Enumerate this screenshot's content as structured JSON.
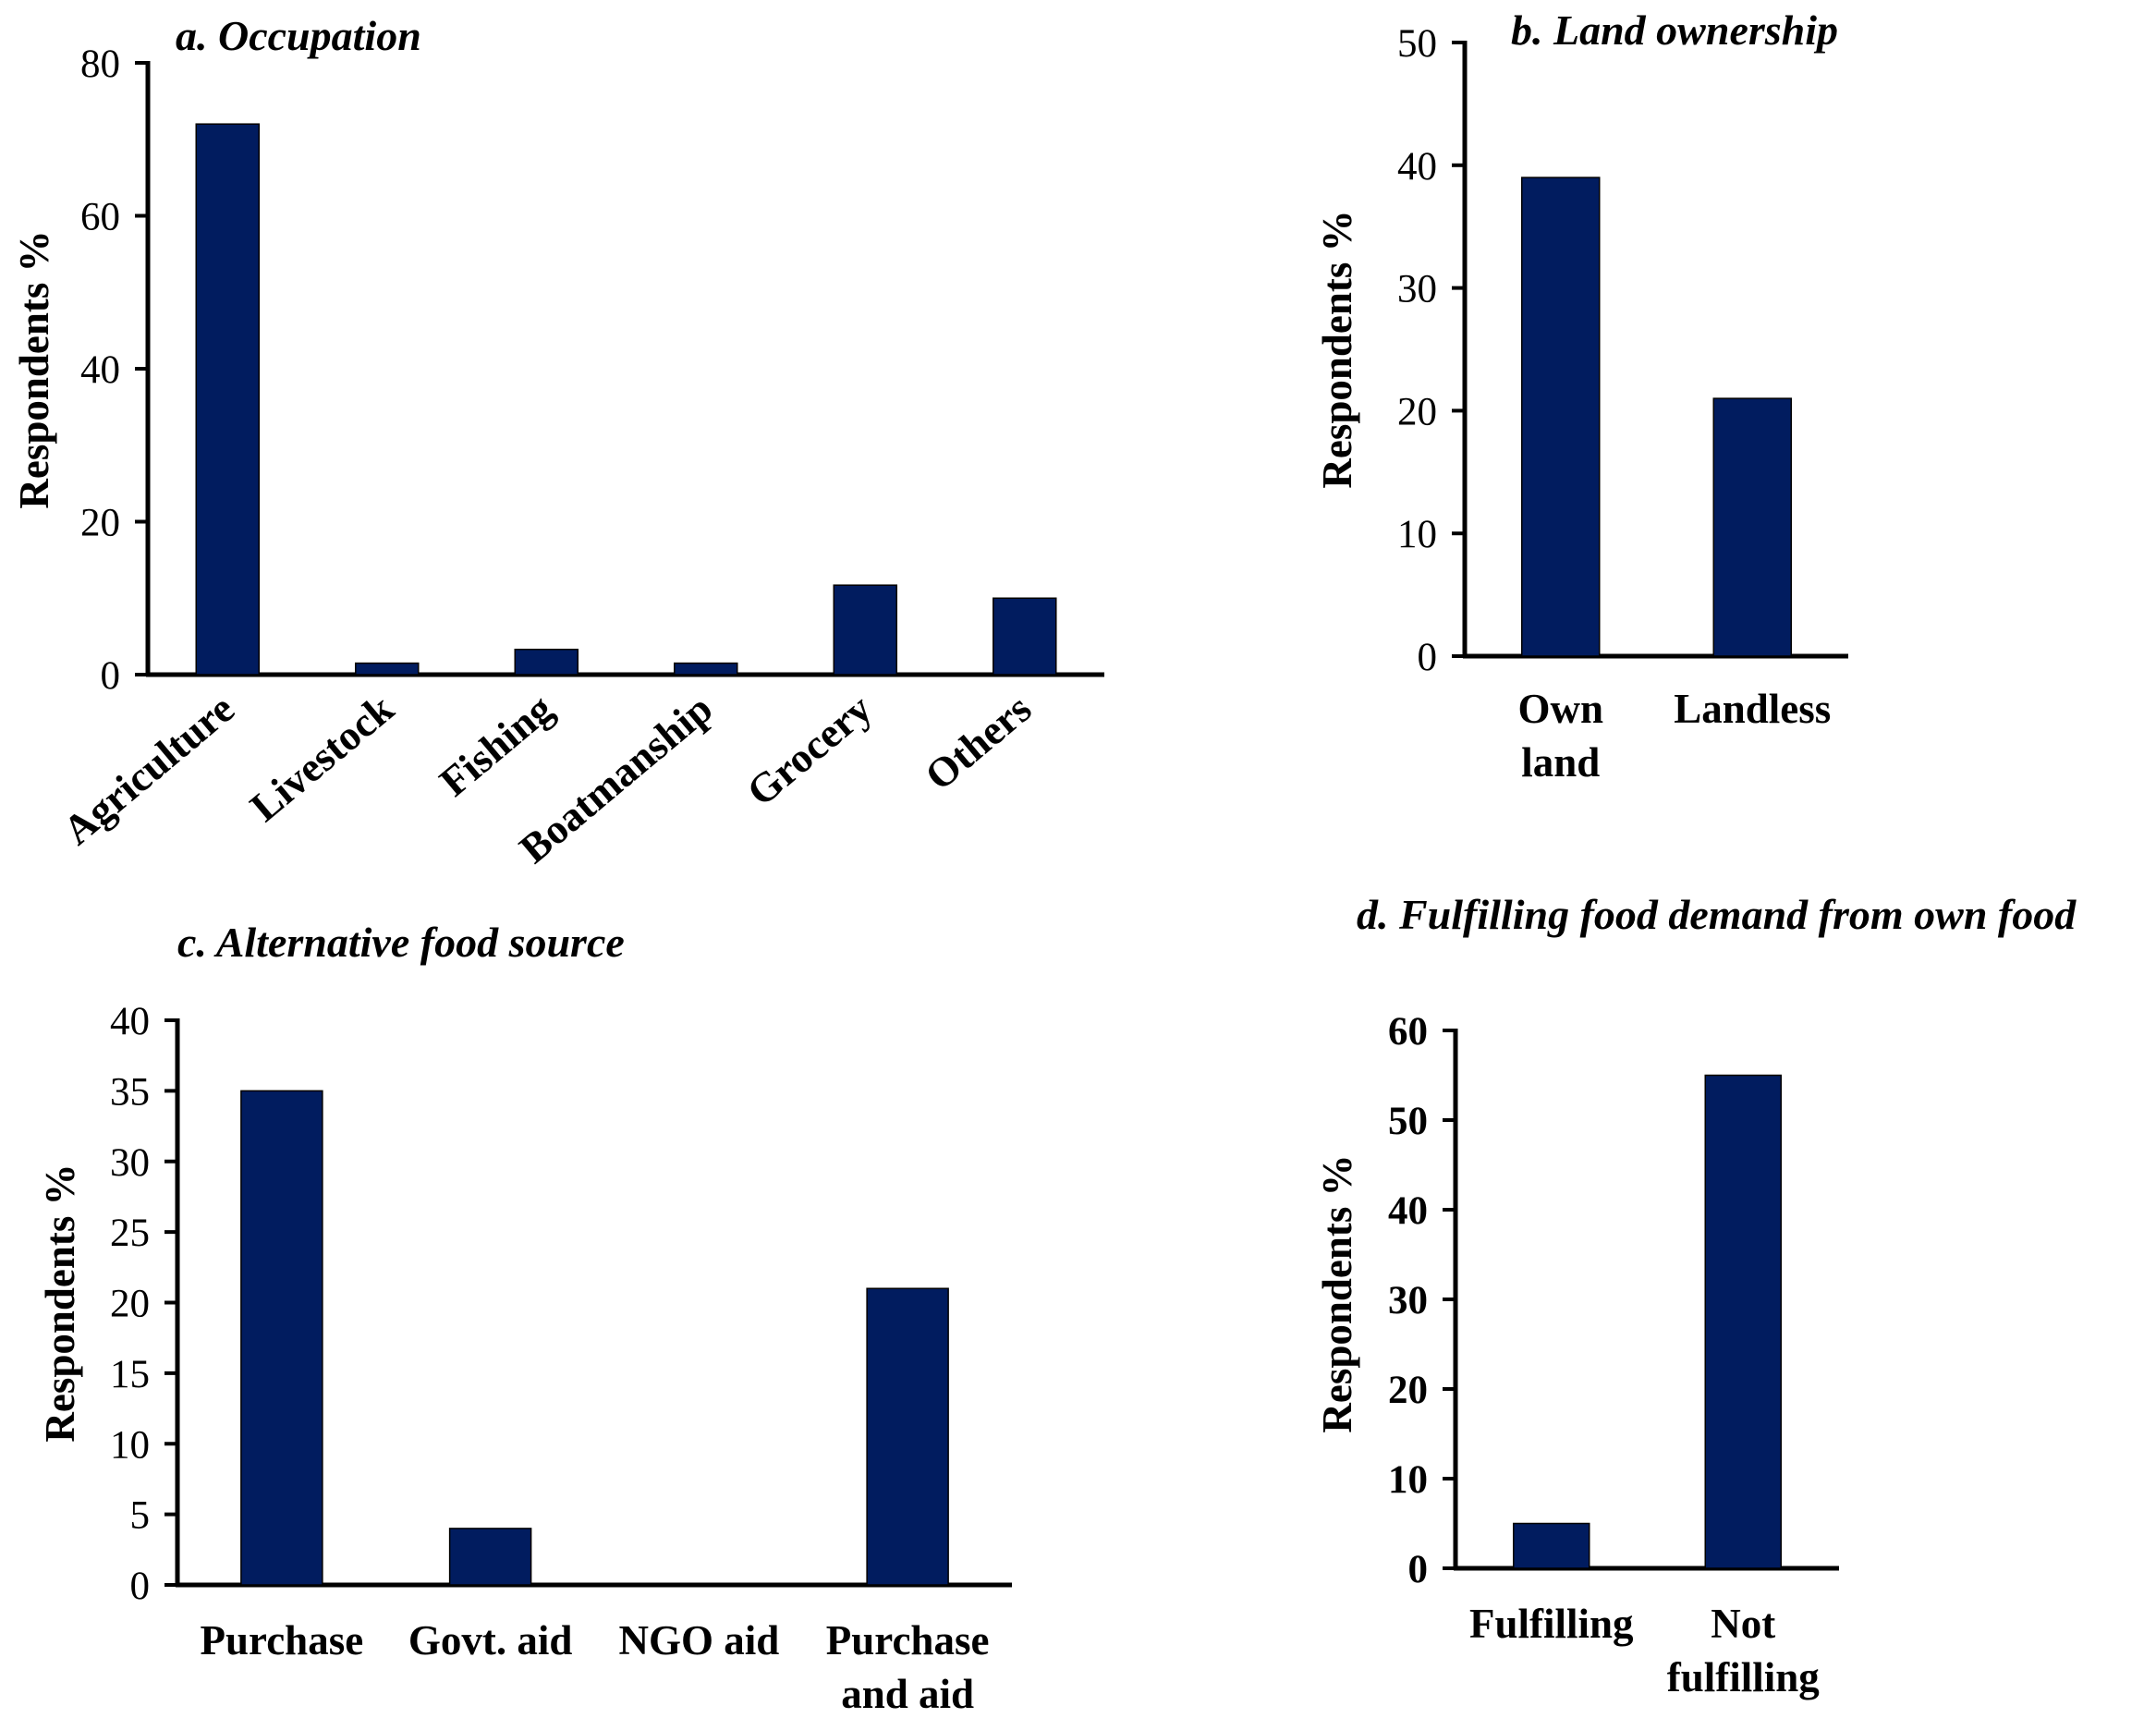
{
  "chart_data": [
    {
      "id": "a",
      "type": "bar",
      "title": "a. Occupation",
      "xlabel": "",
      "ylabel": "Respondents %",
      "categories": [
        "Agriculture",
        "Livestock",
        "Fishing",
        "Boatmanship",
        "Grocery",
        "Others"
      ],
      "values": [
        72,
        1.5,
        3.3,
        1.5,
        11.7,
        10
      ],
      "ylim": [
        0,
        80
      ],
      "yticks": [
        0,
        20,
        40,
        60,
        80
      ],
      "bar_color": "#011c5f",
      "grid": false,
      "legend": "none"
    },
    {
      "id": "b",
      "type": "bar",
      "title": "b. Land ownership",
      "xlabel": "",
      "ylabel": "Respondents %",
      "categories": [
        "Own\nland",
        "Landless"
      ],
      "values": [
        39,
        21
      ],
      "ylim": [
        0,
        50
      ],
      "yticks": [
        0,
        10,
        20,
        30,
        40,
        50
      ],
      "bar_color": "#011c5f",
      "grid": false,
      "legend": "none"
    },
    {
      "id": "c",
      "type": "bar",
      "title": "c.  Alternative food source",
      "xlabel": "",
      "ylabel": "Respondents %",
      "categories": [
        "Purchase",
        "Govt. aid",
        "NGO aid",
        "Purchase\nand aid"
      ],
      "values": [
        35,
        4,
        0,
        21
      ],
      "ylim": [
        0,
        40
      ],
      "yticks": [
        0,
        5,
        10,
        15,
        20,
        25,
        30,
        35,
        40
      ],
      "bar_color": "#011c5f",
      "grid": false,
      "legend": "none"
    },
    {
      "id": "d",
      "type": "bar",
      "title": "d. Fulfilling food demand from own food",
      "xlabel": "",
      "ylabel": "Respondents %",
      "categories": [
        "Fulfilling",
        "Not\nfulfilling"
      ],
      "values": [
        5,
        55
      ],
      "ylim": [
        0,
        60
      ],
      "yticks": [
        0,
        10,
        20,
        30,
        40,
        50,
        60
      ],
      "bar_color": "#011c5f",
      "grid": false,
      "legend": "none"
    }
  ]
}
